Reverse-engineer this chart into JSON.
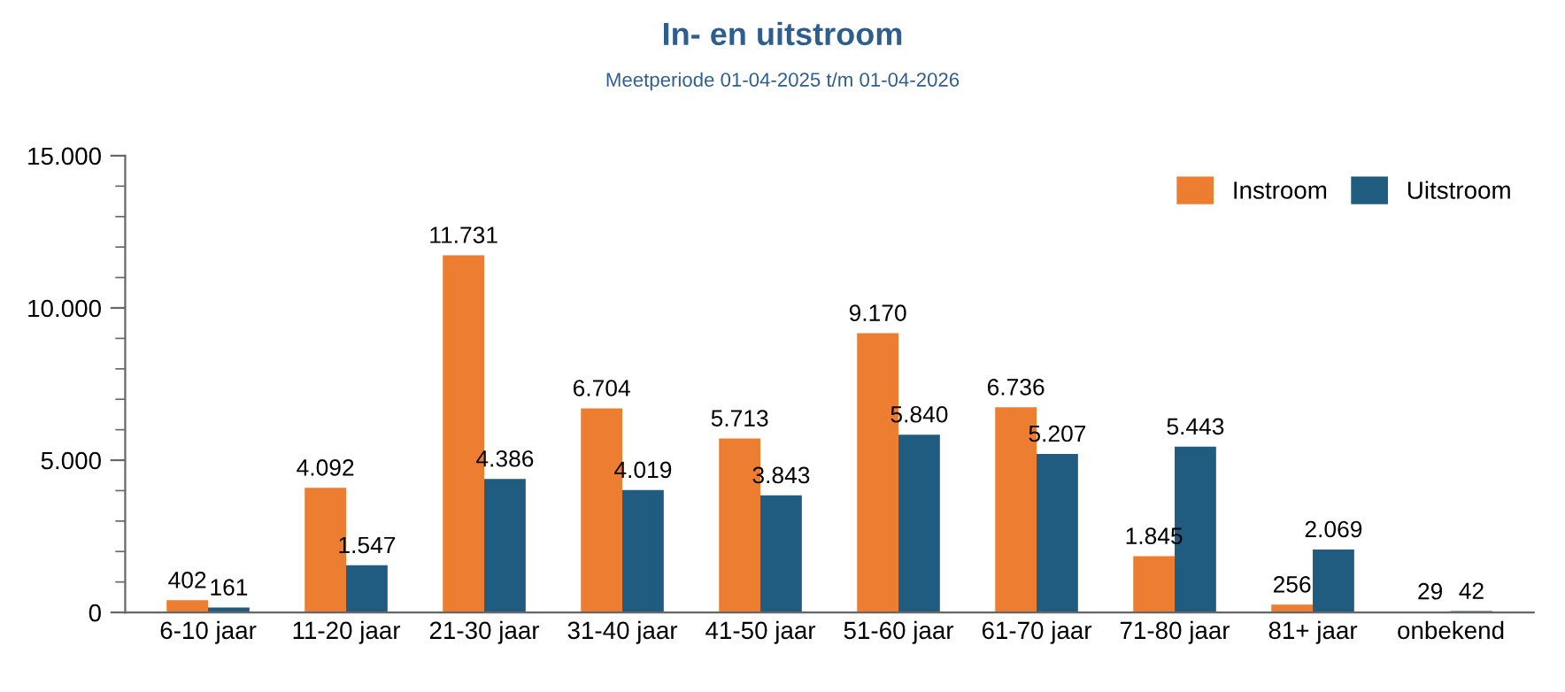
{
  "chart_data": {
    "type": "bar",
    "title": "In- en uitstroom",
    "subtitle": "Meetperiode 01-04-2025 t/m 01-04-2026",
    "categories": [
      "6-10 jaar",
      "11-20 jaar",
      "21-30 jaar",
      "31-40 jaar",
      "41-50 jaar",
      "51-60 jaar",
      "61-70 jaar",
      "71-80 jaar",
      "81+ jaar",
      "onbekend"
    ],
    "series": [
      {
        "name": "Instroom",
        "color": "#ed7d31",
        "values": [
          402,
          4092,
          11731,
          6704,
          5713,
          9170,
          6736,
          1845,
          256,
          29
        ],
        "value_labels": [
          "402",
          "4.092",
          "11.731",
          "6.704",
          "5.713",
          "9.170",
          "6.736",
          "1.845",
          "256",
          "29"
        ]
      },
      {
        "name": "Uitstroom",
        "color": "#1f5c80",
        "values": [
          161,
          1547,
          4386,
          4019,
          3843,
          5840,
          5207,
          5443,
          2069,
          42
        ],
        "value_labels": [
          "161",
          "1.547",
          "4.386",
          "4.019",
          "3.843",
          "5.840",
          "5.207",
          "5.443",
          "2.069",
          "42"
        ]
      }
    ],
    "ylim": [
      0,
      15000
    ],
    "yticks": [
      {
        "value": 0,
        "label": "0"
      },
      {
        "value": 5000,
        "label": "5.000"
      },
      {
        "value": 10000,
        "label": "10.000"
      },
      {
        "value": 15000,
        "label": "15.000"
      }
    ],
    "grid": false,
    "legend": "top right"
  }
}
